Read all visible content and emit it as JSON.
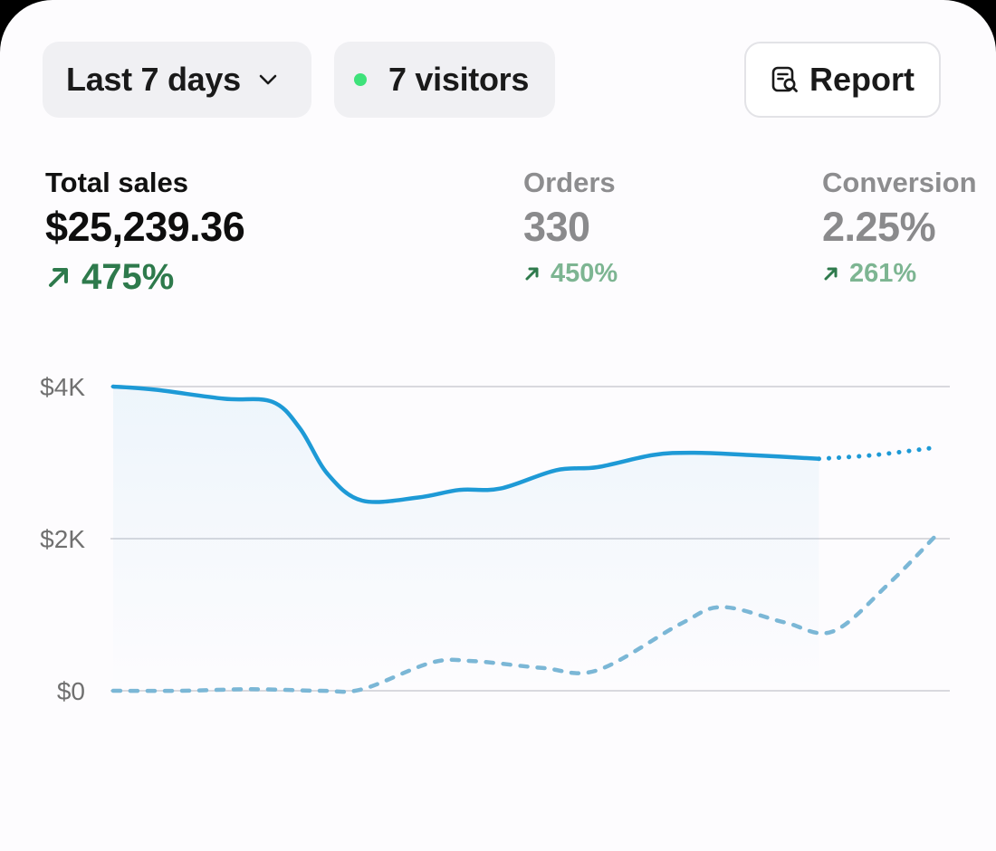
{
  "toolbar": {
    "range_label": "Last 7 days",
    "range_icon": "chevron-down-icon",
    "visitors_label": "7 visitors",
    "visitors_dot_color": "#3ee27a",
    "report_label": "Report",
    "report_icon": "report-search-icon"
  },
  "metrics": [
    {
      "label": "Total sales",
      "value": "$25,239.36",
      "delta": "475%",
      "delta_icon": "arrow-up-right-icon"
    },
    {
      "label": "Orders",
      "value": "330",
      "delta": "450%",
      "delta_icon": "arrow-up-right-icon"
    },
    {
      "label": "Conversion",
      "value": "2.25%",
      "delta": "261%",
      "delta_icon": "arrow-up-right-icon"
    }
  ],
  "colors": {
    "current_line": "#1e9ad6",
    "previous_line": "#7bb7d6",
    "positive_delta": "#2e7a4c",
    "positive_delta_muted": "#7db592",
    "grid": "#d9d9de"
  },
  "chart_data": {
    "type": "line",
    "ytick_labels": [
      "$4K",
      "$2K",
      "$0"
    ],
    "yticks": [
      4000,
      2000,
      0
    ],
    "ylim": [
      0,
      4000
    ],
    "grid": true,
    "xlim": [
      0,
      6
    ],
    "series": [
      {
        "style": "solid-with-dotted-projection",
        "x": [
          0,
          0.3,
          0.8,
          1.15,
          1.35,
          1.55,
          1.8,
          2.2,
          2.5,
          2.8,
          3.2,
          3.5,
          3.9,
          4.2,
          4.6,
          5.1
        ],
        "y": [
          4000,
          3960,
          3840,
          3800,
          3450,
          2850,
          2500,
          2540,
          2640,
          2660,
          2900,
          2940,
          3100,
          3130,
          3100,
          3050
        ],
        "projection_x": [
          5.1,
          5.5,
          5.95
        ],
        "projection_y": [
          3050,
          3100,
          3200
        ]
      },
      {
        "style": "dashed",
        "x": [
          0,
          0.5,
          1.0,
          1.5,
          1.8,
          2.3,
          2.6,
          3.1,
          3.5,
          4.1,
          4.4,
          4.85,
          5.2,
          5.6,
          5.95
        ],
        "y": [
          0,
          0,
          20,
          0,
          20,
          370,
          390,
          300,
          270,
          880,
          1100,
          900,
          780,
          1400,
          2050
        ]
      }
    ]
  }
}
